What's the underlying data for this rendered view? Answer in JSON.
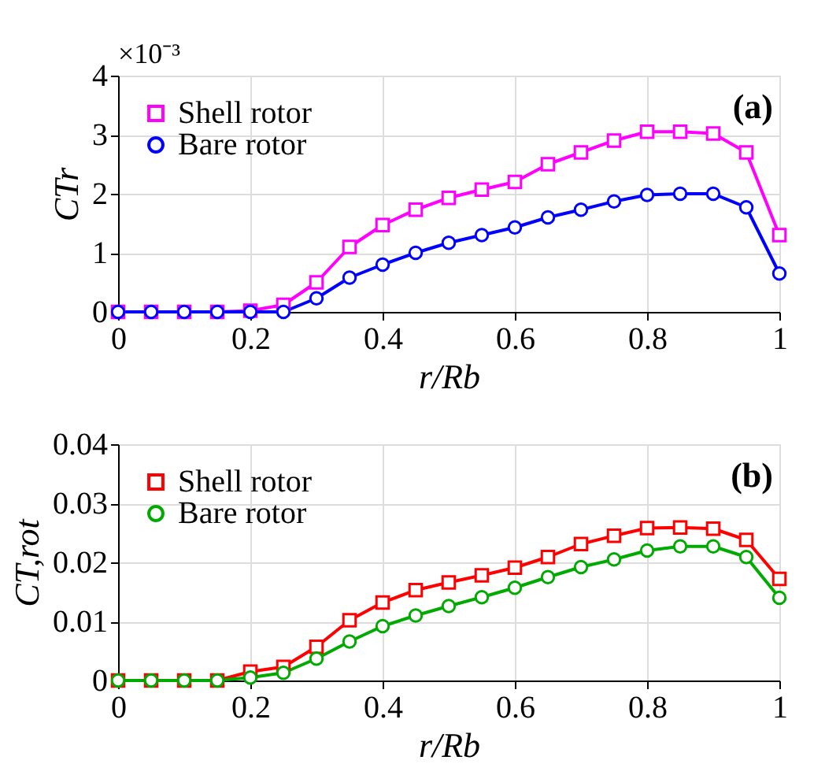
{
  "chart_data": [
    {
      "type": "line",
      "xlabel": "r/Rb",
      "ylabel": "CTr",
      "annotations": [
        "×10⁻³",
        "(a)"
      ],
      "x": [
        0,
        0.05,
        0.1,
        0.15,
        0.2,
        0.25,
        0.3,
        0.35,
        0.4,
        0.45,
        0.5,
        0.55,
        0.6,
        0.65,
        0.7,
        0.75,
        0.8,
        0.85,
        0.9,
        0.95,
        1.0
      ],
      "series": [
        {
          "name": "Shell rotor",
          "color": "#ff00ff",
          "marker": "square",
          "values": [
            0,
            0,
            0,
            0,
            0.02,
            0.12,
            0.5,
            1.1,
            1.47,
            1.73,
            1.93,
            2.07,
            2.2,
            2.5,
            2.7,
            2.9,
            3.05,
            3.05,
            3.02,
            2.7,
            1.3
          ]
        },
        {
          "name": "Bare rotor",
          "color": "#0000ff",
          "marker": "circle",
          "values": [
            0,
            0,
            0,
            0,
            0,
            0,
            0.23,
            0.58,
            0.8,
            1.0,
            1.17,
            1.3,
            1.43,
            1.6,
            1.73,
            1.87,
            1.98,
            2.0,
            2.0,
            1.77,
            0.65
          ]
        }
      ],
      "xlim": [
        0,
        1
      ],
      "xticks": [
        0,
        0.2,
        0.4,
        0.6,
        0.8,
        1
      ],
      "ylim": [
        0,
        4
      ],
      "yticks": [
        0,
        1,
        2,
        3,
        4
      ],
      "grid": true,
      "legend": "top left",
      "line_style": "solid"
    },
    {
      "type": "line",
      "xlabel": "r/Rb",
      "ylabel": "CT,rot",
      "annotations": [
        "(b)"
      ],
      "x": [
        0,
        0.05,
        0.1,
        0.15,
        0.2,
        0.25,
        0.3,
        0.35,
        0.4,
        0.45,
        0.5,
        0.55,
        0.6,
        0.65,
        0.7,
        0.75,
        0.8,
        0.85,
        0.9,
        0.95,
        1.0
      ],
      "series": [
        {
          "name": "Shell rotor",
          "color": "#ff0000",
          "marker": "square",
          "values": [
            0,
            0,
            0,
            0,
            0.0015,
            0.0023,
            0.0057,
            0.0102,
            0.0132,
            0.0153,
            0.0166,
            0.0178,
            0.0191,
            0.0209,
            0.0231,
            0.0245,
            0.0258,
            0.0259,
            0.0257,
            0.0238,
            0.0172
          ]
        },
        {
          "name": "Bare rotor",
          "color": "#00aa00",
          "marker": "circle",
          "values": [
            0,
            0,
            0,
            0,
            0.0005,
            0.0013,
            0.0037,
            0.0066,
            0.0092,
            0.011,
            0.0126,
            0.0141,
            0.0157,
            0.0175,
            0.0192,
            0.0205,
            0.022,
            0.0227,
            0.0227,
            0.0209,
            0.014
          ]
        }
      ],
      "xlim": [
        0,
        1
      ],
      "xticks": [
        0,
        0.2,
        0.4,
        0.6,
        0.8,
        1
      ],
      "ylim": [
        0,
        0.04
      ],
      "yticks": [
        0,
        0.01,
        0.02,
        0.03,
        0.04
      ],
      "grid": true,
      "legend": "top left",
      "line_style": "solid"
    }
  ]
}
